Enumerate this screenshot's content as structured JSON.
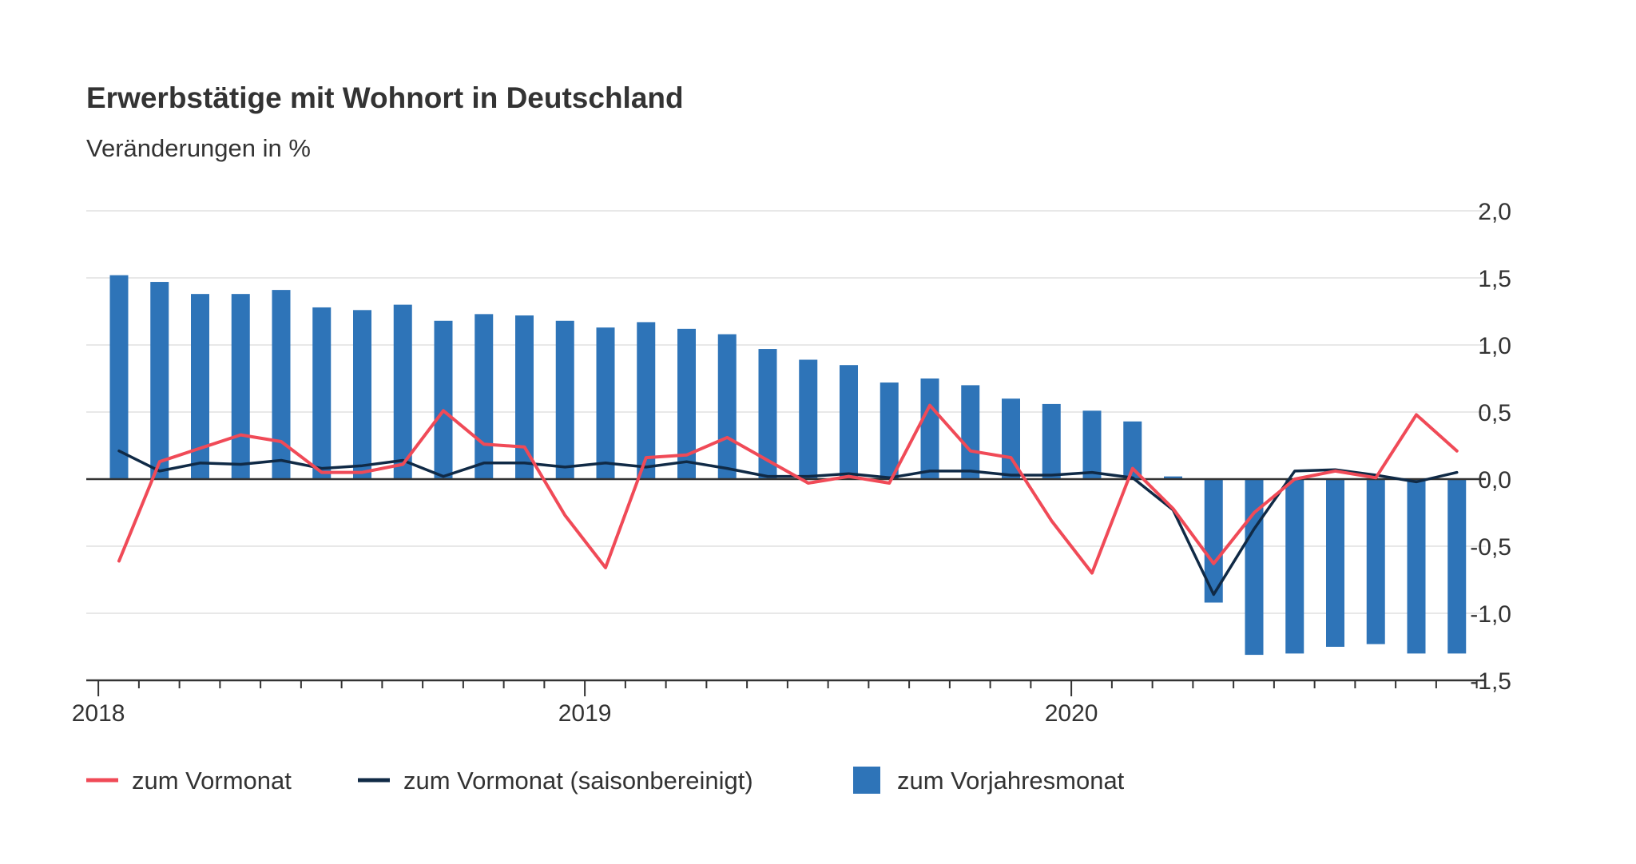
{
  "chart_data": {
    "type": "bar",
    "title": "Erwerbstätige mit Wohnort in Deutschland",
    "subtitle": "Veränderungen in %",
    "xlabel": "",
    "ylabel": "",
    "ylim": [
      -1.5,
      2.0
    ],
    "y_ticks": [
      2.0,
      1.5,
      1.0,
      0.5,
      0.0,
      -0.5,
      -1.0,
      -1.5
    ],
    "y_tick_labels": [
      "2,0",
      "1,5",
      "1,0",
      "0,5",
      "0,0",
      "-0,5",
      "-1,0",
      "-1,5"
    ],
    "x_ticks": [
      "2018",
      "2019",
      "2020"
    ],
    "grid": true,
    "legend_position": "bottom-left",
    "categories": [
      "2018-01",
      "2018-02",
      "2018-03",
      "2018-04",
      "2018-05",
      "2018-06",
      "2018-07",
      "2018-08",
      "2018-09",
      "2018-10",
      "2018-11",
      "2018-12",
      "2019-01",
      "2019-02",
      "2019-03",
      "2019-04",
      "2019-05",
      "2019-06",
      "2019-07",
      "2019-08",
      "2019-09",
      "2019-10",
      "2019-11",
      "2019-12",
      "2020-01",
      "2020-02",
      "2020-03",
      "2020-04",
      "2020-05",
      "2020-06",
      "2020-07",
      "2020-08",
      "2020-09",
      "2020-10"
    ],
    "series": [
      {
        "name": "zum Vorjahresmonat",
        "kind": "bar",
        "color": "#2e74b8",
        "values": [
          1.52,
          1.47,
          1.38,
          1.38,
          1.41,
          1.28,
          1.26,
          1.3,
          1.18,
          1.23,
          1.22,
          1.18,
          1.13,
          1.17,
          1.12,
          1.08,
          0.97,
          0.89,
          0.85,
          0.72,
          0.75,
          0.7,
          0.6,
          0.56,
          0.51,
          0.43,
          0.02,
          -0.92,
          -1.31,
          -1.3,
          -1.25,
          -1.23,
          -1.3,
          -1.3
        ]
      },
      {
        "name": "zum Vormonat",
        "kind": "line",
        "color": "#f04a57",
        "values": [
          -0.61,
          0.13,
          0.23,
          0.33,
          0.28,
          0.05,
          0.05,
          0.11,
          0.51,
          0.26,
          0.24,
          -0.27,
          -0.66,
          0.16,
          0.18,
          0.31,
          0.14,
          -0.03,
          0.02,
          -0.03,
          0.55,
          0.21,
          0.16,
          -0.31,
          -0.7,
          0.08,
          -0.22,
          -0.63,
          -0.25,
          0.0,
          0.06,
          0.01,
          0.48,
          0.21
        ]
      },
      {
        "name": "zum Vormonat (saisonbereinigt)",
        "kind": "line",
        "color": "#102a46",
        "values": [
          0.21,
          0.06,
          0.12,
          0.11,
          0.14,
          0.08,
          0.1,
          0.14,
          0.02,
          0.12,
          0.12,
          0.09,
          0.12,
          0.09,
          0.13,
          0.08,
          0.02,
          0.02,
          0.04,
          0.01,
          0.06,
          0.06,
          0.03,
          0.03,
          0.05,
          0.01,
          -0.23,
          -0.86,
          -0.37,
          0.06,
          0.07,
          0.03,
          -0.02,
          0.05
        ]
      }
    ]
  }
}
